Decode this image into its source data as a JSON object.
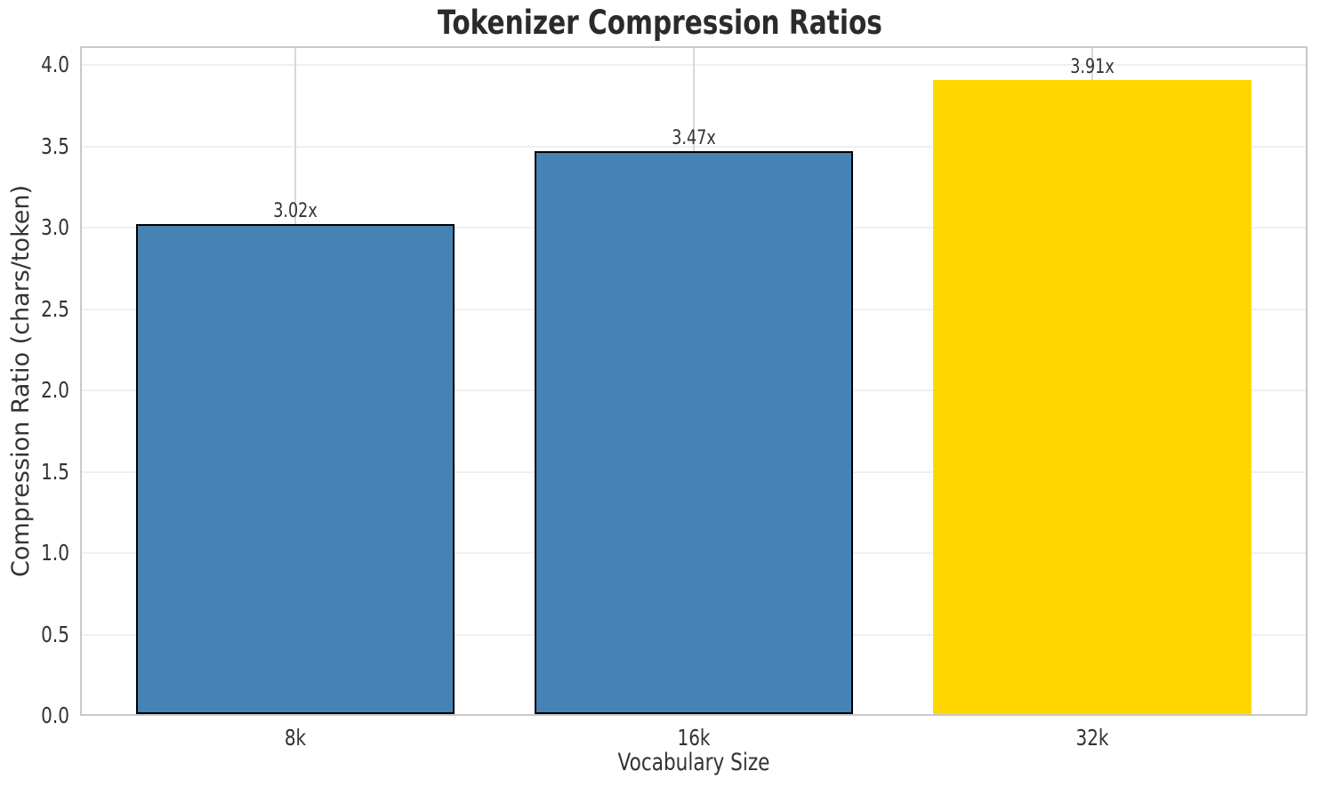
{
  "chart_data": {
    "type": "bar",
    "title": "Tokenizer Compression Ratios",
    "xlabel": "Vocabulary Size",
    "ylabel": "Compression Ratio (chars/token)",
    "categories": [
      "8k",
      "16k",
      "32k"
    ],
    "values": [
      3.02,
      3.47,
      3.91
    ],
    "bar_value_labels": [
      "3.02x",
      "3.47x",
      "3.91x"
    ],
    "ylim": [
      0,
      4.115
    ],
    "yticks": [
      0.0,
      0.5,
      1.0,
      1.5,
      2.0,
      2.5,
      3.0,
      3.5,
      4.0
    ],
    "ytick_labels": [
      "0.0",
      "0.5",
      "1.0",
      "1.5",
      "2.0",
      "2.5",
      "3.0",
      "3.5",
      "4.0"
    ],
    "grid": true,
    "legend": "none",
    "bar_width_frac": 0.8,
    "bar_colors": [
      "#4682B4",
      "#4682B4",
      "#FFD700"
    ],
    "bar_edge_colors": [
      "#000000",
      "#000000",
      "none"
    ]
  },
  "style": {
    "background": "#ffffff",
    "grid_horizontal": "#f0f0f0",
    "grid_vertical": "#d9d9d9",
    "spine": "#c9c9c9",
    "text": "#333333",
    "title_color": "#2b2b2b"
  }
}
